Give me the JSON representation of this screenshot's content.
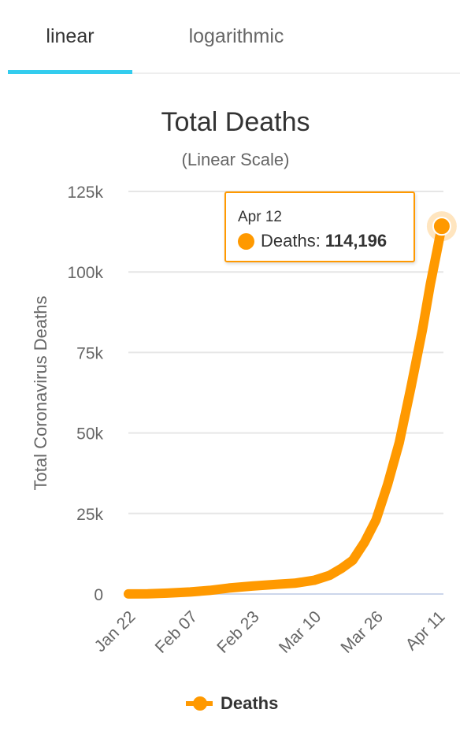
{
  "tabs": [
    {
      "label": "linear",
      "active": true
    },
    {
      "label": "logarithmic",
      "active": false
    }
  ],
  "tooltip": {
    "date": "Apr 12",
    "label": "Deaths:",
    "value": "114,196"
  },
  "colors": {
    "series": "#ff9900",
    "tab_indicator": "#33ccee",
    "grid": "#e6e6e6"
  },
  "chart_data": {
    "type": "line",
    "title": "Total Deaths",
    "subtitle": "(Linear Scale)",
    "ylabel": "Total Coronavirus Deaths",
    "xlabel": "",
    "ylim": [
      0,
      125000
    ],
    "yticks": [
      0,
      25000,
      50000,
      75000,
      100000,
      125000
    ],
    "ytick_labels": [
      "0",
      "25k",
      "50k",
      "75k",
      "100k",
      "125k"
    ],
    "xticks": [
      "Jan 22",
      "Feb 07",
      "Feb 23",
      "Mar 10",
      "Mar 26",
      "Apr 11"
    ],
    "grid": true,
    "legend": "bottom",
    "series": [
      {
        "name": "Deaths",
        "x": [
          "Jan 22",
          "Jan 27",
          "Feb 01",
          "Feb 07",
          "Feb 12",
          "Feb 17",
          "Feb 23",
          "Mar 01",
          "Mar 05",
          "Mar 10",
          "Mar 14",
          "Mar 17",
          "Mar 20",
          "Mar 23",
          "Mar 26",
          "Mar 29",
          "Apr 01",
          "Apr 04",
          "Apr 07",
          "Apr 09",
          "Apr 11",
          "Apr 12"
        ],
        "values": [
          17,
          82,
          259,
          638,
          1115,
          1868,
          2470,
          3050,
          3350,
          4262,
          5800,
          7900,
          10500,
          16000,
          23000,
          34000,
          47000,
          64000,
          82000,
          96000,
          108000,
          114196
        ]
      }
    ]
  }
}
